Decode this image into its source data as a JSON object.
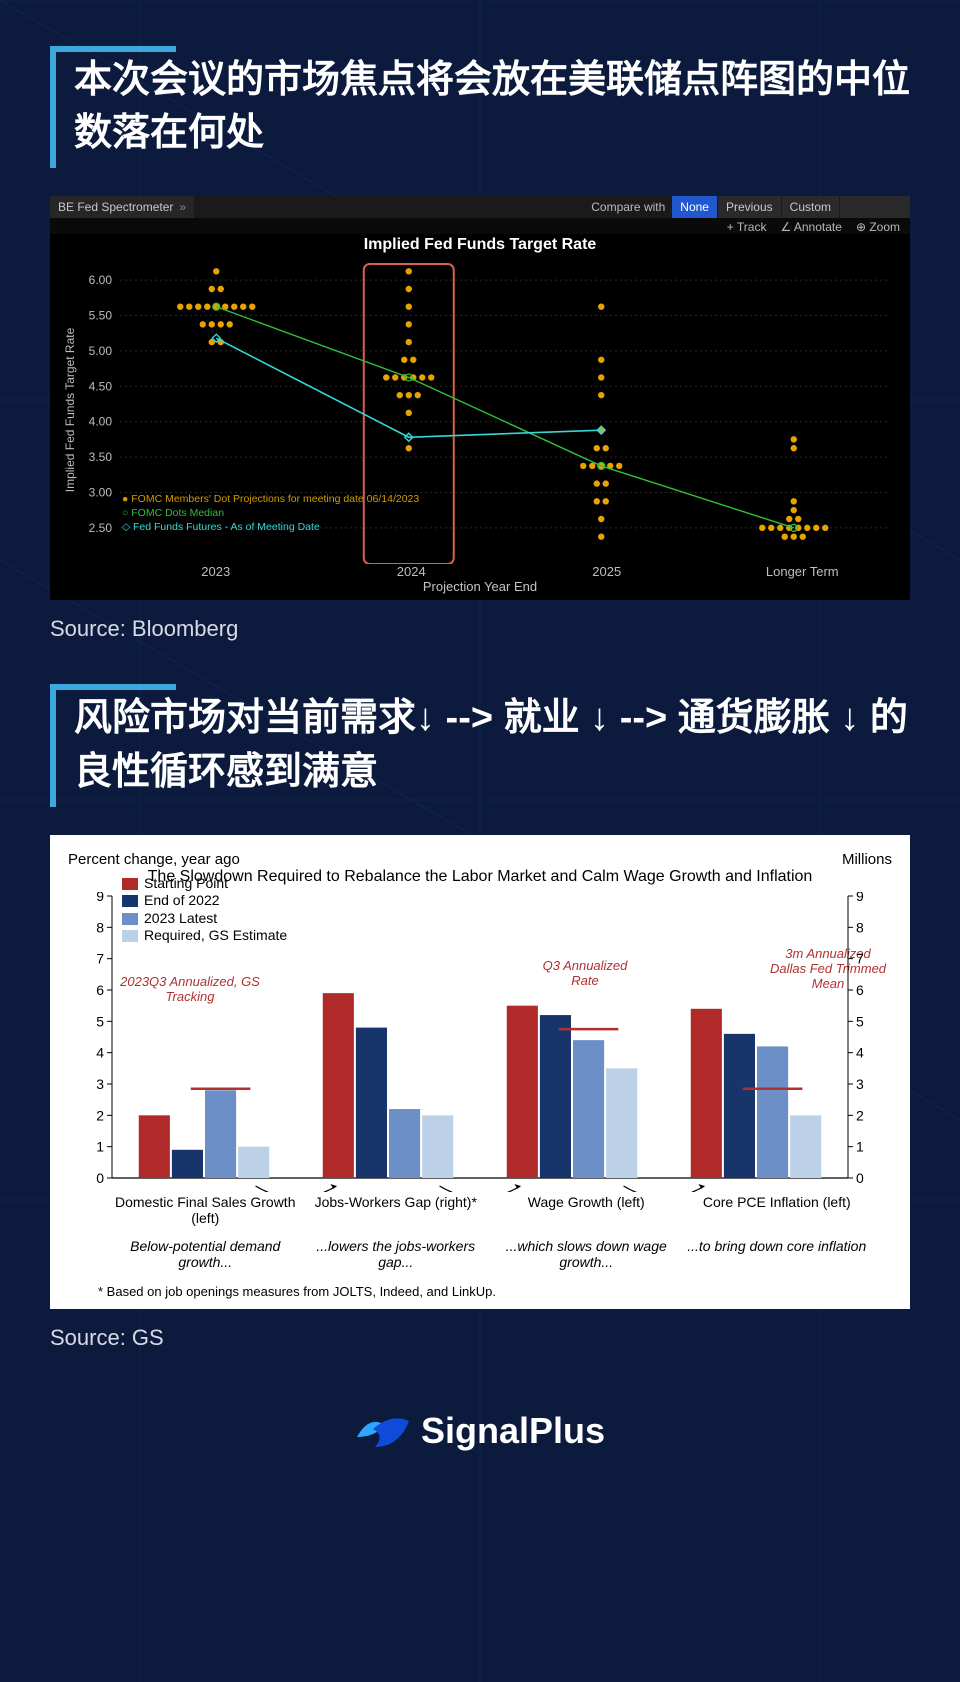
{
  "page": {
    "bg": "#0c1a3e",
    "grid_color": "#4a9de8"
  },
  "sections": [
    {
      "heading": "本次会议的市场焦点将会放在美联储点阵图的中位数落在何处",
      "source": "Source: Bloomberg"
    },
    {
      "heading": "风险市场对当前需求↓ --> 就业 ↓ --> 通货膨胀 ↓ 的良性循环感到满意",
      "source": "Source: GS"
    }
  ],
  "bloomberg_chart": {
    "type": "scatter+line",
    "topbar": {
      "title": "BE Fed Spectrometer",
      "arrows": "»",
      "compare_label": "Compare with",
      "buttons": [
        "None",
        "Previous",
        "Custom"
      ]
    },
    "tools": [
      "+ Track",
      "∠ Annotate",
      "⊕ Zoom"
    ],
    "title": "Implied Fed Funds Target Rate",
    "ylabel": "Implied Fed Funds Target Rate",
    "xlabel": "Projection Year End",
    "xlim": [
      0.5,
      4.5
    ],
    "ylim": [
      2.3,
      6.2
    ],
    "ytick_step": 0.5,
    "yticks": [
      2.5,
      3.0,
      3.5,
      4.0,
      4.5,
      5.0,
      5.5,
      6.0
    ],
    "categories": [
      "2023",
      "2024",
      "2025",
      "Longer Term"
    ],
    "highlight_box": {
      "col": 2,
      "color": "#d9604d",
      "width": 2
    },
    "dot_color": "#e8a300",
    "dot_radius": 3.2,
    "dots": {
      "2023": [
        5.125,
        5.125,
        5.375,
        5.375,
        5.375,
        5.375,
        5.625,
        5.625,
        5.625,
        5.625,
        5.625,
        5.625,
        5.625,
        5.625,
        5.625,
        5.875,
        5.875,
        6.125
      ],
      "2024": [
        3.625,
        4.125,
        4.375,
        4.375,
        4.375,
        4.625,
        4.625,
        4.625,
        4.625,
        4.625,
        4.625,
        4.875,
        4.875,
        5.125,
        5.375,
        5.625,
        5.875,
        6.125
      ],
      "2025": [
        2.375,
        2.625,
        2.875,
        2.875,
        3.125,
        3.125,
        3.375,
        3.375,
        3.375,
        3.375,
        3.375,
        3.625,
        3.625,
        3.875,
        4.375,
        4.625,
        4.875,
        5.625
      ],
      "Longer Term": [
        2.375,
        2.375,
        2.375,
        2.5,
        2.5,
        2.5,
        2.5,
        2.5,
        2.5,
        2.5,
        2.5,
        2.625,
        2.625,
        2.75,
        2.875,
        3.625,
        3.75
      ]
    },
    "median_line": {
      "color": "#2fbf3a",
      "width": 1.4,
      "values": [
        5.625,
        4.625,
        3.375,
        2.5
      ]
    },
    "futures_line": {
      "color": "#38d6d6",
      "width": 1.6,
      "marker": "diamond",
      "values_x": [
        1,
        2,
        3
      ],
      "values_y": [
        5.18,
        3.78,
        3.88
      ]
    },
    "legend": [
      {
        "text": "FOMC Members' Dot Projections for meeting date 06/14/2023",
        "marker": "dot",
        "color": "#e8a300"
      },
      {
        "text": "FOMC Dots Median",
        "marker": "circle",
        "color": "#2fbf3a"
      },
      {
        "text": "Fed Funds Futures - As of Meeting Date",
        "marker": "diamond",
        "color": "#38d6d6"
      }
    ],
    "grid_color": "#2a2a2a",
    "axis_text_color": "#bdbdbd"
  },
  "gs_chart": {
    "type": "grouped-bar",
    "left_label": "Percent change, year ago",
    "right_label": "Millions",
    "title": "The Slowdown Required to Rebalance the Labor Market and Calm Wage Growth and Inflation",
    "ylim": [
      0,
      9
    ],
    "ytick_step": 1,
    "legend": [
      {
        "label": "Starting Point",
        "color": "#b02a2a"
      },
      {
        "label": "End of 2022",
        "color": "#17346b"
      },
      {
        "label": "2023 Latest",
        "color": "#6d8fc7"
      },
      {
        "label": "Required, GS Estimate",
        "color": "#bcd0e8"
      }
    ],
    "groups": [
      {
        "name": "Domestic Final Sales Growth (left)",
        "values": [
          2.0,
          0.9,
          2.8,
          1.0
        ],
        "sub": "Below-potential demand growth..."
      },
      {
        "name": "Jobs-Workers Gap (right)*",
        "values": [
          5.9,
          4.8,
          2.2,
          2.0
        ],
        "sub": "...lowers the jobs-workers gap..."
      },
      {
        "name": "Wage Growth (left)",
        "values": [
          5.5,
          5.2,
          4.4,
          3.5
        ],
        "sub": "...which slows down wage growth..."
      },
      {
        "name": "Core PCE Inflation (left)",
        "values": [
          5.4,
          4.6,
          4.2,
          2.0
        ],
        "sub": "...to bring down core inflation"
      }
    ],
    "annotations": [
      {
        "text": "2023Q3 Annualized, GS Tracking",
        "group": 0,
        "y": 2.85,
        "pos": "left"
      },
      {
        "text": "Q3 Annualized Rate",
        "group": 2,
        "y": 4.75,
        "pos": "above"
      },
      {
        "text": "3m Annualized Dallas Fed Trimmed Mean",
        "group": 3,
        "y": 2.85,
        "pos": "right"
      }
    ],
    "anno_color": "#b03030",
    "bar_width": 0.18,
    "footnote": "* Based on job openings measures from JOLTS, Indeed, and LinkUp.",
    "background_color": "#ffffff",
    "tick_color": "#000000"
  },
  "footer": {
    "brand": "SignalPlus",
    "mark_color_a": "#2fa6ff",
    "mark_color_b": "#0e4bd8"
  }
}
